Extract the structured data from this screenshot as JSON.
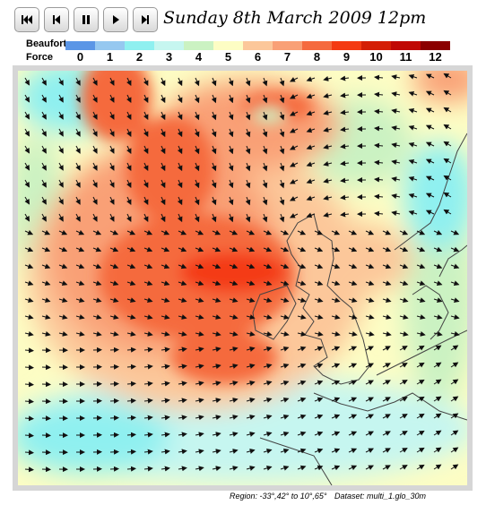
{
  "controls": [
    {
      "name": "skip-to-start-icon"
    },
    {
      "name": "step-back-icon"
    },
    {
      "name": "pause-icon"
    },
    {
      "name": "play-icon"
    },
    {
      "name": "step-forward-icon"
    }
  ],
  "title": "Sunday 8th March 2009 12pm",
  "legend": {
    "label1": "Beaufort",
    "label2": "Force",
    "levels": [
      "0",
      "1",
      "2",
      "3",
      "4",
      "5",
      "6",
      "7",
      "8",
      "9",
      "10",
      "11",
      "12"
    ],
    "colors": [
      "#5b96e6",
      "#96c8f0",
      "#8ff0f0",
      "#c6f6f0",
      "#cbf2c2",
      "#fdfdc4",
      "#fcc79a",
      "#f9a076",
      "#f56a3e",
      "#f43a12",
      "#d41e05",
      "#c00804",
      "#8b0000"
    ]
  },
  "footer": {
    "region": "Region: -33°,42° to 10°,65°",
    "dataset": "Dataset: multi_1.glo_30m"
  }
}
